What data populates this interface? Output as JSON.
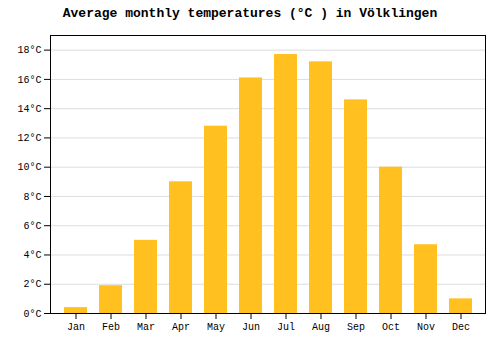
{
  "chart_data": {
    "type": "bar",
    "title": "Average monthly temperatures (°C ) in Völklingen",
    "categories": [
      "Jan",
      "Feb",
      "Mar",
      "Apr",
      "May",
      "Jun",
      "Jul",
      "Aug",
      "Sep",
      "Oct",
      "Nov",
      "Dec"
    ],
    "values": [
      0.4,
      1.9,
      5.0,
      9.0,
      12.8,
      16.1,
      17.7,
      17.2,
      14.6,
      10.0,
      4.7,
      1.0
    ],
    "color": "#FFC020",
    "ylim": [
      0,
      19
    ],
    "yticks": [
      {
        "value": 0,
        "label": "0°C"
      },
      {
        "value": 2,
        "label": "2°C"
      },
      {
        "value": 4,
        "label": "4°C"
      },
      {
        "value": 6,
        "label": "6°C"
      },
      {
        "value": 8,
        "label": "8°C"
      },
      {
        "value": 10,
        "label": "10°C"
      },
      {
        "value": 12,
        "label": "12°C"
      },
      {
        "value": 14,
        "label": "14°C"
      },
      {
        "value": 16,
        "label": "16°C"
      },
      {
        "value": 18,
        "label": "18°C"
      }
    ],
    "grid": true
  }
}
